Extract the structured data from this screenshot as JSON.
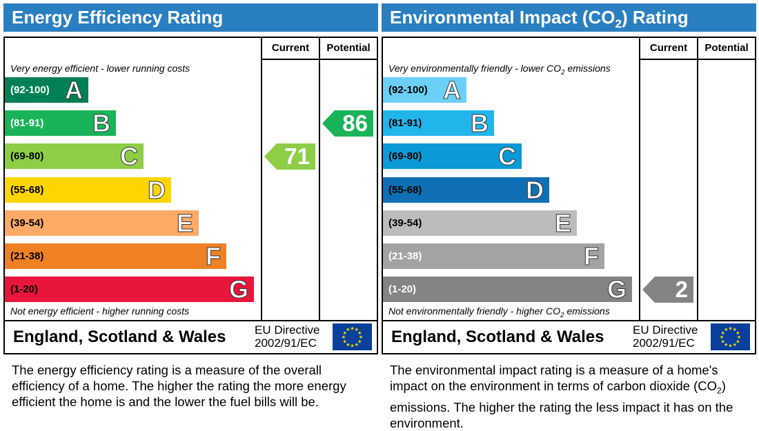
{
  "chart_data": [
    {
      "type": "bar",
      "title": "Energy Efficiency Rating",
      "columns": [
        "Current",
        "Potential"
      ],
      "top_note": "Very energy efficient - lower running costs",
      "bottom_note": "Not energy efficient - higher running costs",
      "bands": [
        {
          "range": "(92-100)",
          "letter": "A",
          "color": "#008054",
          "range_text_color": "#ffffff"
        },
        {
          "range": "(81-91)",
          "letter": "B",
          "color": "#19b459",
          "range_text_color": "#ffffff"
        },
        {
          "range": "(69-80)",
          "letter": "C",
          "color": "#8dce46",
          "range_text_color": "#000000"
        },
        {
          "range": "(55-68)",
          "letter": "D",
          "color": "#ffd500",
          "range_text_color": "#000000"
        },
        {
          "range": "(39-54)",
          "letter": "E",
          "color": "#fcaa65",
          "range_text_color": "#000000"
        },
        {
          "range": "(21-38)",
          "letter": "F",
          "color": "#ef8023",
          "range_text_color": "#000000"
        },
        {
          "range": "(1-20)",
          "letter": "G",
          "color": "#e9153b",
          "range_text_color": "#000000"
        }
      ],
      "current": {
        "value": "71",
        "band": "C",
        "color": "#8dce46"
      },
      "potential": {
        "value": "86",
        "band": "B",
        "color": "#19b459"
      },
      "footer": "England, Scotland & Wales",
      "directive_line1": "EU Directive",
      "directive_line2": "2002/91/EC",
      "description": "The energy efficiency rating is a measure of the overall efficiency of a home. The higher the rating the more energy efficient the home is and the lower the fuel bills will be."
    },
    {
      "type": "bar",
      "title_prefix": "Environmental Impact (CO",
      "title_sub": "2",
      "title_suffix": ") Rating",
      "columns": [
        "Current",
        "Potential"
      ],
      "top_note_prefix": "Very environmentally friendly - lower CO",
      "top_note_sub": "2",
      "top_note_suffix": " emissions",
      "bottom_note_prefix": "Not environmentally friendly - higher CO",
      "bottom_note_sub": "2",
      "bottom_note_suffix": " emissions",
      "bands": [
        {
          "range": "(92-100)",
          "letter": "A",
          "color": "#6ccff6",
          "range_text_color": "#000000"
        },
        {
          "range": "(81-91)",
          "letter": "B",
          "color": "#22b5ec",
          "range_text_color": "#000000"
        },
        {
          "range": "(69-80)",
          "letter": "C",
          "color": "#0a9ad7",
          "range_text_color": "#000000"
        },
        {
          "range": "(55-68)",
          "letter": "D",
          "color": "#0e6fb4",
          "range_text_color": "#000000"
        },
        {
          "range": "(39-54)",
          "letter": "E",
          "color": "#bcbcbc",
          "range_text_color": "#000000"
        },
        {
          "range": "(21-38)",
          "letter": "F",
          "color": "#a3a3a3",
          "range_text_color": "#ffffff"
        },
        {
          "range": "(1-20)",
          "letter": "G",
          "color": "#848484",
          "range_text_color": "#ffffff"
        }
      ],
      "current": {
        "value": "2",
        "band": "G",
        "color": "#848484"
      },
      "potential": null,
      "footer": "England, Scotland & Wales",
      "directive_line1": "EU Directive",
      "directive_line2": "2002/91/EC",
      "description_prefix": "The environmental impact rating is a measure of a home's impact on the environment in terms of carbon dioxide (CO",
      "description_sub": "2",
      "description_suffix": ") emissions. The higher the rating the less impact it has on the environment."
    }
  ]
}
